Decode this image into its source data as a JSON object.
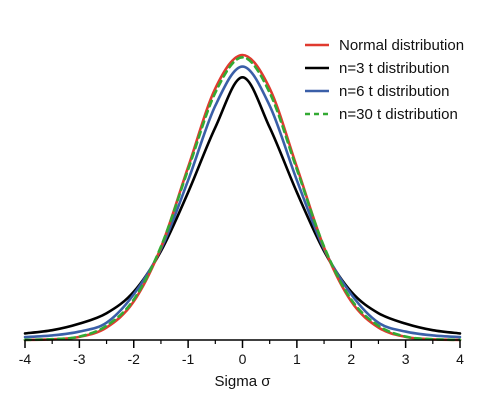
{
  "chart_data": {
    "type": "line",
    "title": "",
    "xlabel": "Sigma σ",
    "ylabel": "",
    "xlim": [
      -4,
      4
    ],
    "ylim": [
      0,
      0.42
    ],
    "x_ticks": [
      -4,
      -3,
      -2,
      -1,
      0,
      1,
      2,
      3,
      4
    ],
    "x_tick_labels": [
      "-4",
      "-3",
      "-2",
      "-1",
      "0",
      "1",
      "2",
      "3",
      "4"
    ],
    "grid": false,
    "legend_position": "top-right",
    "x": [
      -4,
      -3.5,
      -3,
      -2.5,
      -2,
      -1.5,
      -1,
      -0.5,
      0,
      0.5,
      1,
      1.5,
      2,
      2.5,
      3,
      3.5,
      4
    ],
    "series": [
      {
        "name": "Normal distribution",
        "color": "#e03a2f",
        "dash": "solid",
        "values": [
          0.0001,
          0.0009,
          0.0044,
          0.0175,
          0.054,
          0.1295,
          0.242,
          0.3521,
          0.3989,
          0.3521,
          0.242,
          0.1295,
          0.054,
          0.0175,
          0.0044,
          0.0009,
          0.0001
        ]
      },
      {
        "name": "n=3 t distribution",
        "color": "#000000",
        "dash": "solid",
        "values": [
          0.0092,
          0.0137,
          0.0229,
          0.0375,
          0.0675,
          0.1244,
          0.2067,
          0.2975,
          0.3676,
          0.2975,
          0.2067,
          0.1244,
          0.0675,
          0.0375,
          0.0229,
          0.0137,
          0.0092
        ]
      },
      {
        "name": "n=6 t distribution",
        "color": "#3a5fa8",
        "dash": "solid",
        "values": [
          0.0041,
          0.0064,
          0.0118,
          0.0243,
          0.0639,
          0.1271,
          0.2235,
          0.3279,
          0.3827,
          0.3279,
          0.2235,
          0.1271,
          0.0639,
          0.0243,
          0.0118,
          0.0064,
          0.0041
        ]
      },
      {
        "name": "n=30 t distribution",
        "color": "#33aa33",
        "dash": "dashed",
        "values": [
          0.0002,
          0.0011,
          0.0048,
          0.0199,
          0.0566,
          0.1307,
          0.2387,
          0.3461,
          0.3956,
          0.3461,
          0.2387,
          0.1307,
          0.0566,
          0.0199,
          0.0048,
          0.0011,
          0.0002
        ]
      }
    ]
  }
}
